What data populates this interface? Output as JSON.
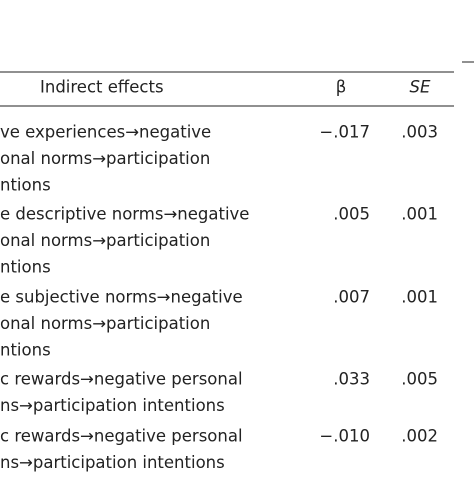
{
  "table": {
    "header": [
      "Indirect effects",
      "β",
      "SE"
    ],
    "rows": [
      {
        "effect": [
          "ve experiences→negative",
          "onal norms→participation",
          "ntions"
        ],
        "beta": "−.017",
        "se": ".003"
      },
      {
        "effect": [
          "e descriptive norms→negative",
          "onal norms→participation",
          "ntions"
        ],
        "beta": ".005",
        "se": ".001"
      },
      {
        "effect": [
          "e subjective norms→negative",
          "onal norms→participation",
          "ntions"
        ],
        "beta": ".007",
        "se": ".001"
      },
      {
        "effect": [
          "c rewards→negative personal",
          "ns→participation intentions"
        ],
        "beta": ".033",
        "se": ".005"
      },
      {
        "effect": [
          "c rewards→negative personal",
          "ns→participation intentions"
        ],
        "beta": "−.010",
        "se": ".002"
      }
    ]
  }
}
